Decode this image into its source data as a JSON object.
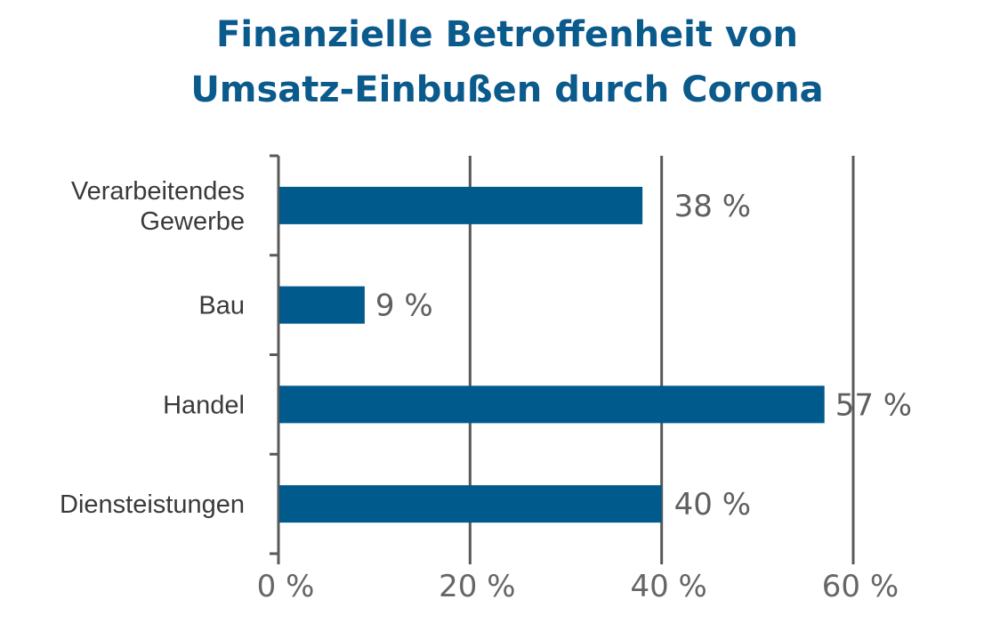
{
  "chart_data": {
    "type": "bar",
    "orientation": "horizontal",
    "title_lines": [
      "Finanzielle Betroffenheit von",
      "Umsatz-Einbußen durch Corona"
    ],
    "categories": [
      [
        "Verarbeitendes",
        "Gewerbe"
      ],
      [
        "Bau"
      ],
      [
        "Handel"
      ],
      [
        "Diensteistungen"
      ]
    ],
    "values": [
      38,
      9,
      57,
      40
    ],
    "value_labels": [
      "38 %",
      "9 %",
      "57 %",
      "40 %"
    ],
    "xlim": [
      0,
      60
    ],
    "xticks": [
      0,
      20,
      40,
      60
    ],
    "xtick_labels": [
      "0 %",
      "20 %",
      "40 %",
      "60 %"
    ],
    "grid": true,
    "legend": "none",
    "bar_color": "#005a8c",
    "grid_color": "#595959"
  }
}
